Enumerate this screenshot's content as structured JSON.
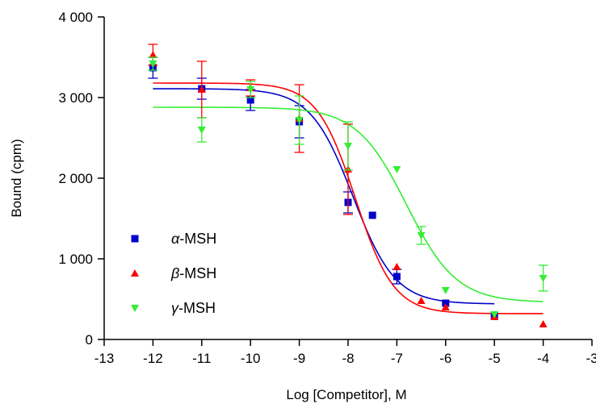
{
  "chart_data": {
    "type": "scatter",
    "xlabel": "Log [Competitor], M",
    "ylabel": "Bound (cpm)",
    "xlim": [
      -13,
      -3
    ],
    "ylim": [
      0,
      4000
    ],
    "xticks": [
      -13,
      -12,
      -11,
      -10,
      -9,
      -8,
      -7,
      -6,
      -5,
      -4,
      -3
    ],
    "xtick_labels": [
      "-13",
      "-12",
      "-11",
      "-10",
      "-9",
      "-8",
      "-7",
      "-6",
      "-5",
      "-4",
      "-3"
    ],
    "yticks": [
      0,
      1000,
      2000,
      3000,
      4000
    ],
    "ytick_labels": [
      "0",
      "1 000",
      "2 000",
      "3 000",
      "4 000"
    ],
    "grid": false,
    "legend_position": "bottom-left",
    "series": [
      {
        "name": "α-MSH",
        "legend_greek": "α",
        "legend_rest": "-MSH",
        "color": "#0000cc",
        "marker": "square",
        "points": [
          {
            "x": -12,
            "y": 3370,
            "err": 130
          },
          {
            "x": -11,
            "y": 3110,
            "err": 130
          },
          {
            "x": -10,
            "y": 2970,
            "err": 130
          },
          {
            "x": -9,
            "y": 2700,
            "err": 200
          },
          {
            "x": -8,
            "y": 1700,
            "err": 130
          },
          {
            "x": -7.5,
            "y": 1540,
            "err": 0
          },
          {
            "x": -7,
            "y": 780,
            "err": 90
          },
          {
            "x": -6,
            "y": 450,
            "err": 0
          },
          {
            "x": -5,
            "y": 290,
            "err": 0
          }
        ],
        "fit": {
          "top": 3110,
          "bottom": 440,
          "logEC50": -7.9,
          "hill": 1.0,
          "xmin": -12,
          "xmax": -5
        }
      },
      {
        "name": "β-MSH",
        "legend_greek": "β",
        "legend_rest": "-MSH",
        "color": "#ff0000",
        "marker": "triangle-up",
        "points": [
          {
            "x": -12,
            "y": 3530,
            "err": 130
          },
          {
            "x": -11,
            "y": 3100,
            "err": 350
          },
          {
            "x": -10,
            "y": 3120,
            "err": 100
          },
          {
            "x": -9,
            "y": 2740,
            "err": 420
          },
          {
            "x": -8,
            "y": 2110,
            "err": 560
          },
          {
            "x": -7,
            "y": 900,
            "err": 0
          },
          {
            "x": -6.5,
            "y": 480,
            "err": 0
          },
          {
            "x": -6,
            "y": 400,
            "err": 0
          },
          {
            "x": -5,
            "y": 280,
            "err": 0
          },
          {
            "x": -4,
            "y": 190,
            "err": 0
          }
        ],
        "fit": {
          "top": 3180,
          "bottom": 320,
          "logEC50": -7.85,
          "hill": 1.1,
          "xmin": -12,
          "xmax": -4
        }
      },
      {
        "name": "γ-MSH",
        "legend_greek": "γ",
        "legend_rest": "-MSH",
        "color": "#33ee33",
        "marker": "triangle-down",
        "points": [
          {
            "x": -12,
            "y": 3420,
            "err": 80
          },
          {
            "x": -11,
            "y": 2600,
            "err": 150
          },
          {
            "x": -10,
            "y": 3100,
            "err": 100
          },
          {
            "x": -9,
            "y": 2720,
            "err": 300
          },
          {
            "x": -8,
            "y": 2400,
            "err": 300
          },
          {
            "x": -7,
            "y": 2110,
            "err": 0
          },
          {
            "x": -6.5,
            "y": 1290,
            "err": 110
          },
          {
            "x": -6,
            "y": 610,
            "err": 0
          },
          {
            "x": -5,
            "y": 310,
            "err": 0
          },
          {
            "x": -4,
            "y": 760,
            "err": 160
          }
        ],
        "fit": {
          "top": 2880,
          "bottom": 460,
          "logEC50": -6.8,
          "hill": 0.85,
          "xmin": -12,
          "xmax": -4
        }
      }
    ]
  }
}
